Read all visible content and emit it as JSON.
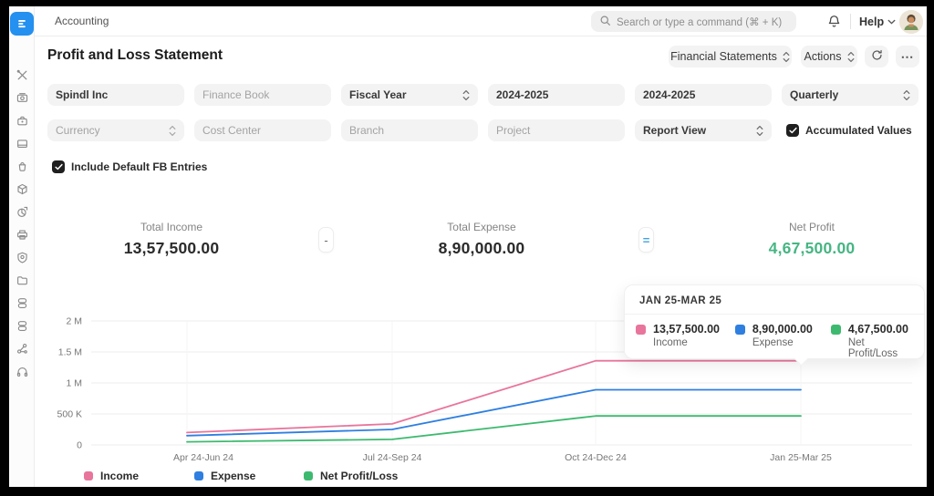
{
  "app": {
    "name": "Accounting",
    "brand_color": "#2490ef"
  },
  "topbar": {
    "search_placeholder": "Search or type a command (⌘ + K)",
    "help_label": "Help"
  },
  "sidebar": {
    "icons": [
      "tools",
      "cash-register",
      "briefcase",
      "browser-card",
      "shopping-bag",
      "cube",
      "pie-chart",
      "printer",
      "shield",
      "folder",
      "stack-1",
      "stack-2",
      "molecule",
      "headphones"
    ]
  },
  "header": {
    "title": "Profit and Loss Statement",
    "financial_statements_label": "Financial Statements",
    "actions_label": "Actions"
  },
  "filters": {
    "company": "Spindl Inc",
    "finance_book_placeholder": "Finance Book",
    "period_basis": "Fiscal Year",
    "from_fiscal_year": "2024-2025",
    "to_fiscal_year": "2024-2025",
    "periodicity": "Quarterly",
    "currency_placeholder": "Currency",
    "cost_center_placeholder": "Cost Center",
    "branch_placeholder": "Branch",
    "project_placeholder": "Project",
    "report_view": "Report View",
    "accumulated_values_label": "Accumulated Values",
    "accumulated_values_checked": true,
    "include_default_fb_label": "Include Default FB Entries",
    "include_default_fb_checked": true
  },
  "summary": {
    "total_income": {
      "label": "Total Income",
      "value": "13,57,500.00"
    },
    "operator_minus": "-",
    "total_expense": {
      "label": "Total Expense",
      "value": "8,90,000.00"
    },
    "operator_equals": "=",
    "equals_color": "#42a1e0",
    "net_profit": {
      "label": "Net Profit",
      "value": "4,67,500.00",
      "color": "#46b583"
    }
  },
  "chart_data": {
    "type": "line",
    "x": [
      "Apr 24-Jun 24",
      "Jul 24-Sep 24",
      "Oct 24-Dec 24",
      "Jan 25-Mar 25"
    ],
    "series": [
      {
        "name": "Income",
        "color": "#e8759c",
        "values": [
          200000,
          340000,
          1357500,
          1357500
        ]
      },
      {
        "name": "Expense",
        "color": "#2e7fe0",
        "values": [
          150000,
          250000,
          890000,
          890000
        ]
      },
      {
        "name": "Net Profit/Loss",
        "color": "#3dba6f",
        "values": [
          50000,
          90000,
          467500,
          467500
        ]
      }
    ],
    "yticks": [
      {
        "label": "0",
        "v": 0
      },
      {
        "label": "500 K",
        "v": 500000
      },
      {
        "label": "1 M",
        "v": 1000000
      },
      {
        "label": "1.5 M",
        "v": 1500000
      },
      {
        "label": "2 M",
        "v": 2000000
      }
    ],
    "ylim": [
      0,
      2000000
    ],
    "grid": true,
    "legend_position": "bottom",
    "tooltip": {
      "period": "JAN 25-MAR 25",
      "entries": [
        {
          "label": "Income",
          "value": "13,57,500.00",
          "color": "#e8759c"
        },
        {
          "label": "Expense",
          "value": "8,90,000.00",
          "color": "#2e7fe0"
        },
        {
          "label": "Net Profit/Loss",
          "value": "4,67,500.00",
          "color": "#3dba6f"
        }
      ]
    }
  }
}
